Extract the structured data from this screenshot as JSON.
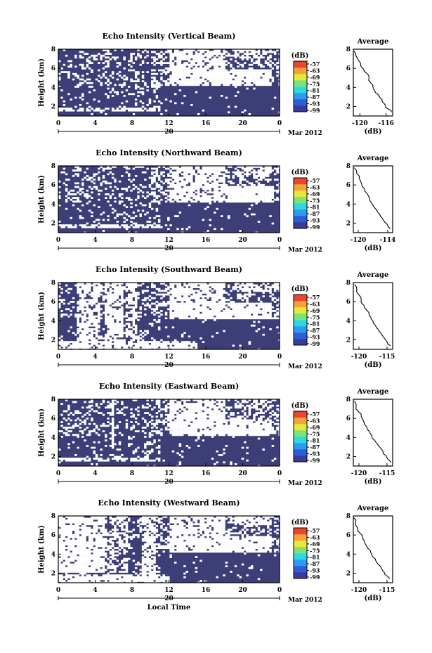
{
  "chart_data": [
    {
      "type": "heatmap",
      "title": "Echo Intensity (Vertical Beam)",
      "ylabel": "Height (km)",
      "ylim": [
        1,
        8
      ],
      "yticks": [
        2,
        4,
        6,
        8
      ],
      "xlim": [
        0,
        24
      ],
      "xticks": [
        "0",
        "4",
        "8",
        "12",
        "16",
        "20",
        "0"
      ],
      "date_tick": "20",
      "date_label": "Mar 2012",
      "colorbar": {
        "unit": "(dB)",
        "ticks": [
          "-57",
          "-63",
          "-69",
          "-75",
          "-81",
          "-87",
          "-93",
          "-99"
        ]
      },
      "average_profile": {
        "title": "Average",
        "xlabel": "(dB)",
        "xticks": [
          "-120",
          "-116"
        ],
        "xlim": [
          -121,
          -115
        ],
        "ylim": [
          1,
          8
        ],
        "yticks": [
          2,
          4,
          6,
          8
        ],
        "x": [
          -120.9,
          -120.6,
          -120.2,
          -119.9,
          -119.4,
          -119.0,
          -118.6,
          -118.4,
          -118.0,
          -117.7,
          -117.3,
          -116.9,
          -116.6,
          -116.1,
          -115.6,
          -115.2
        ],
        "y": [
          7.8,
          7.3,
          6.8,
          6.3,
          5.9,
          5.5,
          5.0,
          4.5,
          4.0,
          3.6,
          3.3,
          2.9,
          2.5,
          2.1,
          1.7,
          1.4
        ]
      }
    },
    {
      "type": "heatmap",
      "title": "Echo Intensity (Northward Beam)",
      "ylabel": "Height (km)",
      "ylim": [
        1,
        8
      ],
      "yticks": [
        2,
        4,
        6,
        8
      ],
      "xlim": [
        0,
        24
      ],
      "xticks": [
        "0",
        "4",
        "8",
        "12",
        "16",
        "20",
        "0"
      ],
      "date_tick": "20",
      "date_label": "Mar 2012",
      "colorbar": {
        "unit": "(dB)",
        "ticks": [
          "-57",
          "-63",
          "-69",
          "-75",
          "-81",
          "-87",
          "-93",
          "-99"
        ]
      },
      "average_profile": {
        "title": "Average",
        "xlabel": "(dB)",
        "xticks": [
          "-120",
          "-114"
        ],
        "xlim": [
          -121,
          -113
        ],
        "ylim": [
          1,
          8
        ],
        "yticks": [
          2,
          4,
          6,
          8
        ],
        "x": [
          -120.8,
          -120.3,
          -119.8,
          -119.3,
          -118.7,
          -118.2,
          -117.7,
          -117.3,
          -116.8,
          -116.2,
          -115.6,
          -115.1,
          -114.6,
          -114.0,
          -113.5
        ],
        "y": [
          7.8,
          7.2,
          6.7,
          6.1,
          5.6,
          5.1,
          4.6,
          4.1,
          3.7,
          3.3,
          2.9,
          2.5,
          2.1,
          1.7,
          1.4
        ]
      }
    },
    {
      "type": "heatmap",
      "title": "Echo Intensity (Southward Beam)",
      "ylabel": "Height (km)",
      "ylim": [
        1,
        8
      ],
      "yticks": [
        2,
        4,
        6,
        8
      ],
      "xlim": [
        0,
        24
      ],
      "xticks": [
        "0",
        "4",
        "8",
        "12",
        "16",
        "20",
        "0"
      ],
      "date_tick": "20",
      "date_label": "Mar 2012",
      "colorbar": {
        "unit": "(dB)",
        "ticks": [
          "-57",
          "-63",
          "-69",
          "-75",
          "-81",
          "-87",
          "-93",
          "-99"
        ]
      },
      "average_profile": {
        "title": "Average",
        "xlabel": "(dB)",
        "xticks": [
          "-120",
          "-115"
        ],
        "xlim": [
          -121,
          -114
        ],
        "ylim": [
          1,
          8
        ],
        "yticks": [
          2,
          4,
          6,
          8
        ],
        "x": [
          -120.8,
          -120.4,
          -120.0,
          -119.6,
          -119.1,
          -118.6,
          -118.2,
          -117.8,
          -117.4,
          -116.9,
          -116.4,
          -115.9,
          -115.4,
          -114.9,
          -114.4
        ],
        "y": [
          7.8,
          7.3,
          6.7,
          6.2,
          5.6,
          5.1,
          4.6,
          4.2,
          3.7,
          3.3,
          2.9,
          2.5,
          2.1,
          1.7,
          1.4
        ]
      }
    },
    {
      "type": "heatmap",
      "title": "Echo Intensity (Eastward Beam)",
      "ylabel": "Height (km)",
      "ylim": [
        1,
        8
      ],
      "yticks": [
        2,
        4,
        6,
        8
      ],
      "xlim": [
        0,
        24
      ],
      "xticks": [
        "0",
        "4",
        "8",
        "12",
        "16",
        "20",
        "0"
      ],
      "date_tick": "20",
      "date_label": "Mar 2012",
      "colorbar": {
        "unit": "(dB)",
        "ticks": [
          "-57",
          "-63",
          "-69",
          "-75",
          "-81",
          "-87",
          "-93",
          "-99"
        ]
      },
      "average_profile": {
        "title": "Average",
        "xlabel": "(dB)",
        "xticks": [
          "-120",
          "-115"
        ],
        "xlim": [
          -121,
          -114
        ],
        "ylim": [
          1,
          8
        ],
        "yticks": [
          2,
          4,
          6,
          8
        ],
        "x": [
          -120.8,
          -120.5,
          -120.1,
          -119.6,
          -119.1,
          -118.6,
          -118.1,
          -117.7,
          -117.2,
          -116.7,
          -116.2,
          -115.7,
          -115.2,
          -114.8,
          -114.3
        ],
        "y": [
          7.8,
          7.3,
          6.7,
          6.2,
          5.6,
          5.1,
          4.6,
          4.2,
          3.7,
          3.3,
          2.9,
          2.5,
          2.1,
          1.7,
          1.4
        ]
      }
    },
    {
      "type": "heatmap",
      "title": "Echo Intensity (Westward Beam)",
      "ylabel": "Height (km)",
      "ylim": [
        1,
        8
      ],
      "yticks": [
        2,
        4,
        6,
        8
      ],
      "xlim": [
        0,
        24
      ],
      "xticks": [
        "0",
        "4",
        "8",
        "12",
        "16",
        "20",
        "0"
      ],
      "date_tick": "20",
      "date_label": "Mar 2012",
      "xlabel": "Local Time",
      "colorbar": {
        "unit": "(dB)",
        "ticks": [
          "-57",
          "-63",
          "-69",
          "-75",
          "-81",
          "-87",
          "-93",
          "-99"
        ]
      },
      "average_profile": {
        "title": "Average",
        "xlabel": "(dB)",
        "xticks": [
          "-120",
          "-115"
        ],
        "xlim": [
          -121,
          -114
        ],
        "ylim": [
          1,
          8
        ],
        "yticks": [
          2,
          4,
          6,
          8
        ],
        "x": [
          -120.9,
          -120.6,
          -120.2,
          -119.8,
          -119.3,
          -118.9,
          -118.4,
          -117.9,
          -117.5,
          -117.0,
          -116.5,
          -116.0,
          -115.5,
          -115.0,
          -114.5
        ],
        "y": [
          7.8,
          7.3,
          6.7,
          6.2,
          5.6,
          5.1,
          4.6,
          4.2,
          3.7,
          3.3,
          2.9,
          2.5,
          2.1,
          1.7,
          1.4
        ]
      }
    }
  ],
  "colors": {
    "echo": "#3d3d78",
    "background": "#ffffff",
    "colormap": [
      "#3a3a9a",
      "#2c5fd6",
      "#2f9bf0",
      "#2fd8e0",
      "#7be37a",
      "#e8e83a",
      "#f2a33a",
      "#e8462e"
    ]
  }
}
